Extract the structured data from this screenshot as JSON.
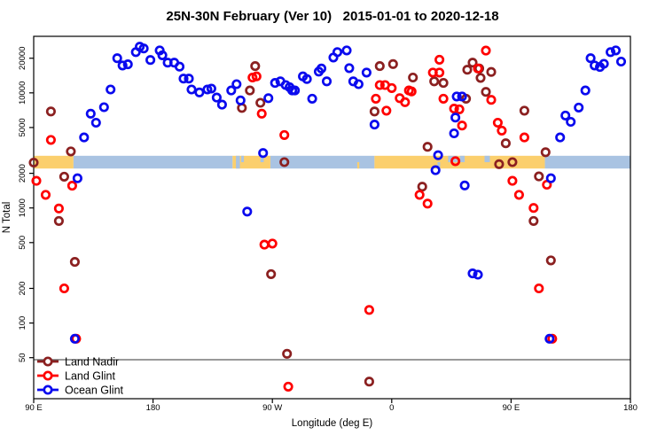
{
  "title": "25N-30N February (Ver 10)   2015-01-01 to 2020-12-18",
  "legend": {
    "entries": [
      {
        "label": "Land Nadir",
        "color": "#8B2020"
      },
      {
        "label": "Land Glint",
        "color": "#FF0000"
      },
      {
        "label": "Ocean Glint",
        "color": "#0A0AEE"
      }
    ]
  },
  "chart_data": {
    "type": "scatter",
    "title": "25N-30N February (Ver 10)   2015-01-01 to 2020-12-18",
    "xlabel": "Longitude (deg E)",
    "ylabel": "N Total",
    "x_axis": {
      "unit": "deg E (wrapping axis, 90E through 180 to 90E to 180)",
      "range": [
        90,
        540
      ],
      "ticks": [
        {
          "pos": 90,
          "label": "90 E"
        },
        {
          "pos": 180,
          "label": "180"
        },
        {
          "pos": 270,
          "label": "90 W"
        },
        {
          "pos": 360,
          "label": "0"
        },
        {
          "pos": 450,
          "label": "90 E"
        },
        {
          "pos": 540,
          "label": "180"
        }
      ]
    },
    "y_axis": {
      "scale": "log",
      "range": [
        22,
        31000
      ],
      "ticks": [
        50,
        100,
        200,
        500,
        1000,
        2000,
        5000,
        10000,
        20000
      ]
    },
    "reference_line": {
      "n": 48
    },
    "map_strip": {
      "n_range": [
        2200,
        2840
      ],
      "land_color": "#FBCF6D",
      "ocean_color": "#A9C3E2",
      "segments": [
        {
          "type": "land",
          "from": 90,
          "to": 120
        },
        {
          "type": "ocean",
          "from": 120,
          "to": 240
        },
        {
          "type": "land",
          "from": 240,
          "to": 268.5
        },
        {
          "type": "ocean",
          "from": 268.5,
          "to": 347
        },
        {
          "type": "land",
          "from": 347,
          "to": 475.5
        },
        {
          "type": "ocean",
          "from": 475.5,
          "to": 540
        }
      ],
      "patches": [
        {
          "type": "ocean",
          "from": 242.5,
          "to": 245.5,
          "part": "full"
        },
        {
          "type": "ocean",
          "from": 246.5,
          "to": 248.5,
          "part": "top"
        },
        {
          "type": "ocean",
          "from": 261,
          "to": 263.5,
          "part": "top"
        },
        {
          "type": "land",
          "from": 334,
          "to": 335.5,
          "part": "bottom"
        },
        {
          "type": "ocean",
          "from": 394.5,
          "to": 396.5,
          "part": "bottom"
        },
        {
          "type": "ocean",
          "from": 402.5,
          "to": 409.5,
          "part": "top"
        },
        {
          "type": "ocean",
          "from": 411.5,
          "to": 415,
          "part": "top"
        },
        {
          "type": "ocean",
          "from": 430,
          "to": 434,
          "part": "top"
        }
      ]
    },
    "series": [
      {
        "name": "Land Nadir",
        "color": "#8B2020",
        "points": [
          [
            103,
            6900
          ],
          [
            118,
            3100
          ],
          [
            90,
            2480
          ],
          [
            113,
            1870
          ],
          [
            109,
            770
          ],
          [
            121,
            340
          ],
          [
            247,
            7400
          ],
          [
            253,
            10500
          ],
          [
            257,
            17100
          ],
          [
            261,
            8200
          ],
          [
            269,
            266
          ],
          [
            279,
            2500
          ],
          [
            281,
            54
          ],
          [
            343,
            31
          ],
          [
            347,
            6900
          ],
          [
            351,
            17100
          ],
          [
            361,
            17800
          ],
          [
            376,
            13600
          ],
          [
            383,
            1530
          ],
          [
            387,
            3400
          ],
          [
            392,
            12600
          ],
          [
            399,
            12200
          ],
          [
            416,
            8900
          ],
          [
            417,
            15900
          ],
          [
            421,
            18300
          ],
          [
            426,
            16300
          ],
          [
            427,
            13500
          ],
          [
            431,
            10200
          ],
          [
            435,
            15200
          ],
          [
            441,
            2400
          ],
          [
            446,
            3650
          ],
          [
            451,
            2500
          ],
          [
            460,
            7000
          ],
          [
            467,
            770
          ],
          [
            471,
            1880
          ],
          [
            476,
            3050
          ],
          [
            480,
            350
          ]
        ]
      },
      {
        "name": "Land Glint",
        "color": "#FF0000",
        "points": [
          [
            103,
            3900
          ],
          [
            92,
            1720
          ],
          [
            119,
            1560
          ],
          [
            99,
            1300
          ],
          [
            109,
            990
          ],
          [
            113,
            200
          ],
          [
            122,
            73
          ],
          [
            255,
            13600
          ],
          [
            258,
            13900
          ],
          [
            262,
            6600
          ],
          [
            264,
            480
          ],
          [
            270,
            490
          ],
          [
            279,
            4300
          ],
          [
            282,
            28
          ],
          [
            343,
            130
          ],
          [
            348,
            8900
          ],
          [
            351,
            11700
          ],
          [
            355,
            11700
          ],
          [
            356,
            7000
          ],
          [
            360,
            11000
          ],
          [
            366,
            9000
          ],
          [
            370,
            8300
          ],
          [
            373,
            10500
          ],
          [
            375,
            10300
          ],
          [
            381,
            1300
          ],
          [
            387,
            1090
          ],
          [
            391,
            15000
          ],
          [
            396,
            15000
          ],
          [
            396,
            19400
          ],
          [
            399,
            8900
          ],
          [
            407,
            7300
          ],
          [
            408,
            2550
          ],
          [
            411,
            7200
          ],
          [
            413,
            5200
          ],
          [
            425,
            16300
          ],
          [
            431,
            23300
          ],
          [
            435,
            8700
          ],
          [
            440,
            5500
          ],
          [
            443,
            4700
          ],
          [
            451,
            1720
          ],
          [
            456,
            1300
          ],
          [
            460,
            4100
          ],
          [
            467,
            1000
          ],
          [
            471,
            200
          ],
          [
            477,
            1590
          ],
          [
            481,
            73
          ]
        ]
      },
      {
        "name": "Ocean Glint",
        "color": "#0A0AEE",
        "points": [
          [
            121,
            73
          ],
          [
            123,
            1810
          ],
          [
            128,
            4100
          ],
          [
            133,
            6600
          ],
          [
            137,
            5500
          ],
          [
            143,
            7500
          ],
          [
            148,
            10700
          ],
          [
            153,
            20000
          ],
          [
            157,
            17300
          ],
          [
            161,
            17700
          ],
          [
            167,
            22600
          ],
          [
            170,
            25200
          ],
          [
            173,
            24300
          ],
          [
            178,
            19300
          ],
          [
            185,
            23400
          ],
          [
            187,
            21200
          ],
          [
            191,
            18300
          ],
          [
            196,
            18300
          ],
          [
            200,
            16900
          ],
          [
            203,
            13300
          ],
          [
            207,
            13300
          ],
          [
            209,
            10700
          ],
          [
            215,
            10100
          ],
          [
            221,
            10700
          ],
          [
            224,
            10900
          ],
          [
            228,
            9100
          ],
          [
            232,
            7900
          ],
          [
            239,
            10500
          ],
          [
            243,
            11900
          ],
          [
            246,
            8600
          ],
          [
            251,
            930
          ],
          [
            263,
            3000
          ],
          [
            267,
            9000
          ],
          [
            272,
            12200
          ],
          [
            276,
            12600
          ],
          [
            280,
            11700
          ],
          [
            283,
            11200
          ],
          [
            285,
            10500
          ],
          [
            287,
            10500
          ],
          [
            293,
            13900
          ],
          [
            296,
            13200
          ],
          [
            300,
            8900
          ],
          [
            305,
            15300
          ],
          [
            307,
            16300
          ],
          [
            311,
            12600
          ],
          [
            316,
            20300
          ],
          [
            319,
            22600
          ],
          [
            326,
            23400
          ],
          [
            328,
            16400
          ],
          [
            331,
            12600
          ],
          [
            335,
            11900
          ],
          [
            341,
            15000
          ],
          [
            347,
            5300
          ],
          [
            393,
            2130
          ],
          [
            395,
            2870
          ],
          [
            407,
            4450
          ],
          [
            408,
            6100
          ],
          [
            409,
            9300
          ],
          [
            413,
            9300
          ],
          [
            415,
            1570
          ],
          [
            421,
            270
          ],
          [
            425,
            263
          ],
          [
            479,
            73
          ],
          [
            480,
            1810
          ],
          [
            487,
            4100
          ],
          [
            491,
            6350
          ],
          [
            495,
            5600
          ],
          [
            501,
            7450
          ],
          [
            506,
            10500
          ],
          [
            510,
            20000
          ],
          [
            513,
            17300
          ],
          [
            517,
            16800
          ],
          [
            520,
            17900
          ],
          [
            525,
            22600
          ],
          [
            529,
            23400
          ],
          [
            533,
            18700
          ]
        ]
      }
    ],
    "legend_position": "bottom-left",
    "grid": false
  }
}
